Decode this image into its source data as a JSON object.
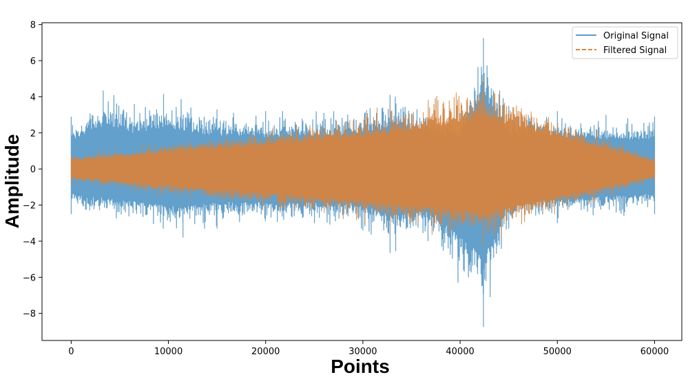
{
  "chart_data": {
    "type": "line",
    "xlabel": "Points",
    "ylabel": "Amplitude",
    "xlim": [
      -3000,
      62800
    ],
    "ylim": [
      -9.5,
      8.1
    ],
    "xticks": [
      0,
      10000,
      20000,
      30000,
      40000,
      50000,
      60000
    ],
    "xtick_labels": [
      "0",
      "10000",
      "20000",
      "30000",
      "40000",
      "50000",
      "60000"
    ],
    "yticks": [
      -8,
      -6,
      -4,
      -2,
      0,
      2,
      4,
      6,
      8
    ],
    "ytick_labels": [
      "−8",
      "−6",
      "−4",
      "−2",
      "0",
      "2",
      "4",
      "6",
      "8"
    ],
    "grid": false,
    "legend_position": "top-right",
    "n_points": 60000,
    "series": [
      {
        "name": "Original Signal",
        "style": "solid",
        "color": "#5b9bc8",
        "envelope_upper": [
          [
            0,
            2.9
          ],
          [
            3300,
            4.35
          ],
          [
            6500,
            3.6
          ],
          [
            9500,
            4.15
          ],
          [
            15000,
            3.3
          ],
          [
            20000,
            3.2
          ],
          [
            27000,
            3.2
          ],
          [
            32800,
            4.1
          ],
          [
            40000,
            3.1
          ],
          [
            42400,
            7.25
          ],
          [
            45000,
            3.5
          ],
          [
            50000,
            3.2
          ],
          [
            55000,
            3.0
          ],
          [
            60000,
            2.9
          ]
        ],
        "envelope_lower": [
          [
            0,
            -2.5
          ],
          [
            11500,
            -3.8
          ],
          [
            15000,
            -3.3
          ],
          [
            30000,
            -3.4
          ],
          [
            32800,
            -4.65
          ],
          [
            36700,
            -4.0
          ],
          [
            42400,
            -8.75
          ],
          [
            45000,
            -3.3
          ],
          [
            50000,
            -3.0
          ],
          [
            60000,
            -2.5
          ]
        ]
      },
      {
        "name": "Filtered Signal",
        "style": "dashed",
        "color": "#d4843f",
        "envelope_upper": [
          [
            0,
            0.8
          ],
          [
            32800,
            3.5
          ],
          [
            42400,
            5.1
          ],
          [
            60000,
            0.7
          ]
        ],
        "envelope_lower": [
          [
            0,
            -0.8
          ],
          [
            32800,
            -3.4
          ],
          [
            42400,
            -4.3
          ],
          [
            60000,
            -0.7
          ]
        ]
      }
    ]
  }
}
